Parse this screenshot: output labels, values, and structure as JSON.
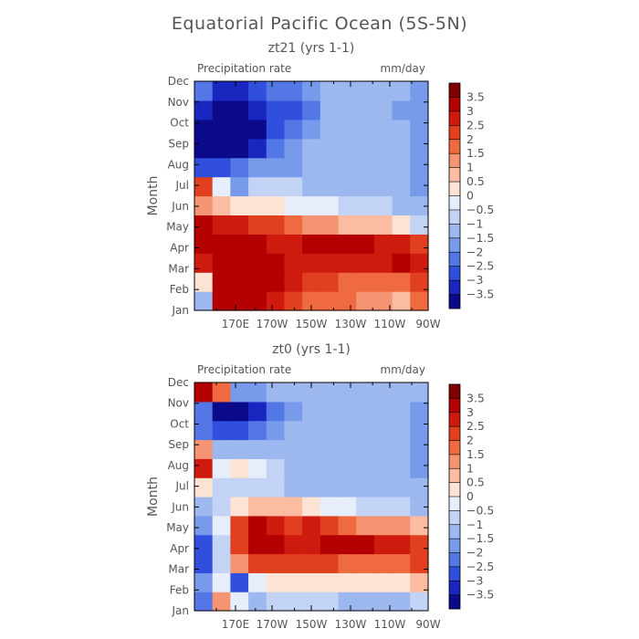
{
  "figure": {
    "title": "Equatorial Pacific Ocean (5S-5N)"
  },
  "colorbar": {
    "levels": [
      "3.5",
      "3",
      "2.5",
      "2",
      "1.5",
      "1",
      "0.5",
      "0",
      "-0.5",
      "-1",
      "-1.5",
      "-2",
      "-2.5",
      "-3",
      "-3.5"
    ],
    "colors": [
      "#800000",
      "#b30000",
      "#cf1a0f",
      "#e0401f",
      "#ef6a40",
      "#f59472",
      "#fbbca1",
      "#fde3d3",
      "#e6eefb",
      "#c2d3f5",
      "#9db7ef",
      "#779bea",
      "#5378e6",
      "#2f4fdc",
      "#1a26c0",
      "#0a0a8a"
    ]
  },
  "chart_data": [
    {
      "type": "heatmap",
      "title": "zt21 (yrs 1-1)",
      "variable": "Precipitation rate",
      "units": "mm/day",
      "xlabel": "",
      "ylabel": "Month",
      "xticks": [
        "170E",
        "170W",
        "150W",
        "130W",
        "110W",
        "90W"
      ],
      "yticks": [
        "Jan",
        "Feb",
        "Mar",
        "Apr",
        "May",
        "Jun",
        "Jul",
        "Aug",
        "Sep",
        "Oct",
        "Nov",
        "Dec"
      ],
      "xlim": [
        "150E",
        "90W"
      ],
      "ylim": [
        "Jan",
        "Dec"
      ],
      "z": [
        [
          -1,
          3.5,
          3.5,
          3.5,
          3,
          2.5,
          2,
          2,
          2,
          1.5,
          1.5,
          1,
          2
        ],
        [
          0.5,
          3.5,
          3.5,
          3.5,
          3.5,
          3,
          2.5,
          2.5,
          2,
          2,
          2,
          2,
          2.5
        ],
        [
          3,
          3.5,
          3.5,
          3.5,
          3.5,
          3,
          3,
          3,
          3,
          3,
          3,
          3.5,
          3
        ],
        [
          3.5,
          3.5,
          3.5,
          3.5,
          3,
          3,
          3.5,
          3.5,
          3.5,
          3.5,
          3,
          3,
          2.5
        ],
        [
          3.5,
          3,
          3,
          2.5,
          2.5,
          2,
          1.5,
          1.5,
          1,
          1,
          1,
          0.5,
          -0.5
        ],
        [
          1.5,
          1,
          0.5,
          0.5,
          0.5,
          0,
          0,
          0,
          -0.5,
          -0.5,
          -0.5,
          -1,
          -1
        ],
        [
          2.5,
          0,
          -1.5,
          -0.5,
          -0.5,
          -0.5,
          -1,
          -1,
          -1,
          -1,
          -1,
          -1,
          -1.5
        ],
        [
          -2.5,
          -2.5,
          -2,
          -1.5,
          -1.5,
          -1.5,
          -1,
          -1,
          -1,
          -1,
          -1,
          -1,
          -1.5
        ],
        [
          -3.5,
          -3.5,
          -3.5,
          -3,
          -2,
          -1.5,
          -1,
          -1,
          -1,
          -1,
          -1,
          -1,
          -1.5
        ],
        [
          -3.5,
          -3.5,
          -3.5,
          -3.5,
          -2.5,
          -2,
          -1.5,
          -1,
          -1,
          -1,
          -1,
          -1,
          -1.5
        ],
        [
          -3,
          -3.5,
          -3.5,
          -3,
          -2.5,
          -2.5,
          -2,
          -1,
          -1,
          -1,
          -1,
          -1.5,
          -1.5
        ],
        [
          -2,
          -3,
          -3,
          -2.5,
          -2,
          -2,
          -1.5,
          -1,
          -1,
          -1,
          -1,
          -1,
          -1.5
        ]
      ]
    },
    {
      "type": "heatmap",
      "title": "zt0 (yrs 1-1)",
      "variable": "Precipitation rate",
      "units": "mm/day",
      "xlabel": "",
      "ylabel": "Month",
      "xticks": [
        "170E",
        "170W",
        "150W",
        "130W",
        "110W",
        "90W"
      ],
      "yticks": [
        "Jan",
        "Feb",
        "Mar",
        "Apr",
        "May",
        "Jun",
        "Jul",
        "Aug",
        "Sep",
        "Oct",
        "Nov",
        "Dec"
      ],
      "xlim": [
        "150E",
        "90W"
      ],
      "ylim": [
        "Jan",
        "Dec"
      ],
      "z": [
        [
          -2,
          1.5,
          0,
          -1,
          -0.5,
          -0.5,
          -0.5,
          -0.5,
          -1,
          -1,
          -1,
          -1,
          -0.5
        ],
        [
          -1.5,
          0,
          -2.5,
          0,
          0.5,
          0.5,
          0.5,
          0.5,
          0.5,
          0.5,
          0.5,
          0.5,
          1
        ],
        [
          -2.5,
          -0.5,
          1.5,
          2.5,
          2.5,
          2.5,
          2.5,
          2.5,
          2,
          2,
          2,
          2,
          2.5
        ],
        [
          -2.5,
          -0.5,
          2.5,
          3.5,
          3.5,
          3,
          3,
          3.5,
          3.5,
          3.5,
          3,
          3,
          2.5
        ],
        [
          -1.5,
          0,
          2.5,
          3.5,
          3,
          2.5,
          3,
          2.5,
          2,
          1.5,
          1.5,
          1.5,
          1
        ],
        [
          -1,
          -0.5,
          0.5,
          1,
          1,
          1,
          0.5,
          0,
          0,
          -0.5,
          -0.5,
          -0.5,
          -1
        ],
        [
          0.5,
          -0.5,
          -0.5,
          -0.5,
          -0.5,
          -1,
          -1,
          -1,
          -1,
          -1,
          -1,
          -1,
          -1
        ],
        [
          3,
          0,
          0.5,
          0,
          -0.5,
          -1,
          -1,
          -1,
          -1,
          -1,
          -1,
          -1,
          -1.5
        ],
        [
          1.5,
          -1,
          -1,
          -1,
          -1,
          -1,
          -1,
          -1,
          -1,
          -1,
          -1,
          -1,
          -1.5
        ],
        [
          -2,
          -2.5,
          -2.5,
          -2,
          -1.5,
          -1,
          -1,
          -1,
          -1,
          -1,
          -1,
          -1,
          -1.5
        ],
        [
          -2,
          -3.5,
          -3.5,
          -3,
          -2,
          -1.5,
          -1,
          -1,
          -1,
          -1,
          -1,
          -1,
          -1.5
        ],
        [
          3.5,
          2,
          -1.5,
          -1.5,
          -1,
          -1,
          -1,
          -1,
          -1,
          -1,
          -1,
          -1,
          -1
        ]
      ]
    }
  ]
}
